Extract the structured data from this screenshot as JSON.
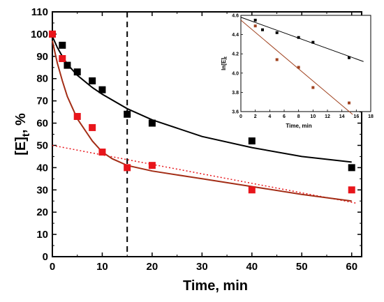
{
  "chart_data": [
    {
      "type": "scatter",
      "title": "",
      "xlabel": "Time, min",
      "ylabel_main": "[E]",
      "ylabel_sub": "t",
      "ylabel_tail": ", %",
      "xlim": [
        0,
        62
      ],
      "ylim": [
        0,
        110
      ],
      "x_ticks": [
        0,
        10,
        20,
        30,
        40,
        50,
        60
      ],
      "y_ticks": [
        0,
        10,
        20,
        30,
        40,
        50,
        60,
        70,
        80,
        90,
        100,
        110
      ],
      "grid": false,
      "legend": "none",
      "annotations": [
        {
          "type": "vertical-dashed-line",
          "x": 15,
          "color": "#000000"
        }
      ],
      "series": [
        {
          "color": "#000000",
          "marker": "square",
          "x": [
            0,
            2,
            3,
            5,
            8,
            10,
            15,
            20,
            40,
            60
          ],
          "y": [
            100,
            95,
            86,
            83,
            79,
            75,
            64,
            60,
            52,
            40
          ],
          "fit_curve": {
            "x": [
              0,
              1,
              2,
              3,
              5,
              8,
              10,
              15,
              20,
              30,
              40,
              50,
              60
            ],
            "y": [
              99,
              94,
              90,
              86.5,
              81.5,
              76,
              73,
              66.5,
              61.5,
              54,
              49,
              45,
              42.5
            ]
          }
        },
        {
          "color": "#e8151b",
          "fit_color": "#a32d16",
          "marker": "square",
          "x": [
            0,
            2,
            5,
            8,
            10,
            15,
            20,
            40,
            60
          ],
          "y": [
            100,
            89,
            63,
            58,
            47,
            40,
            41,
            30,
            30
          ],
          "fit_curve": {
            "x": [
              0,
              1,
              2,
              3,
              5,
              8,
              10,
              12,
              15,
              20,
              30,
              40,
              50,
              60
            ],
            "y": [
              97,
              87,
              79,
              72,
              62,
              52,
              47,
              44,
              41,
              38.5,
              35,
              31.5,
              28,
              25
            ]
          },
          "dotted_line": {
            "x": [
              0,
              61
            ],
            "y": [
              50,
              24
            ]
          }
        }
      ]
    },
    {
      "type": "scatter",
      "title": "",
      "xlabel": "Time, min",
      "ylabel_main": "ln[E]",
      "ylabel_sub": "t",
      "xlim": [
        0,
        18
      ],
      "ylim": [
        3.6,
        4.6
      ],
      "x_ticks": [
        0,
        2,
        4,
        6,
        8,
        10,
        12,
        14,
        16,
        18
      ],
      "y_ticks": [
        "3.6",
        "3.8",
        "4.0",
        "4.2",
        "4.4",
        "4.6"
      ],
      "grid": false,
      "legend": "none",
      "series": [
        {
          "color": "#000000",
          "marker": "square",
          "x": [
            2,
            3,
            5,
            8,
            10,
            15
          ],
          "y": [
            4.55,
            4.45,
            4.42,
            4.37,
            4.32,
            4.16
          ],
          "fit_line": {
            "x": [
              0,
              17
            ],
            "y": [
              4.58,
              4.12
            ]
          }
        },
        {
          "color": "#a0421f",
          "marker": "square",
          "x": [
            2,
            5,
            8,
            10,
            15
          ],
          "y": [
            4.49,
            4.14,
            4.06,
            3.85,
            3.69
          ],
          "fit_line": {
            "x": [
              0,
              15.5
            ],
            "y": [
              4.55,
              3.57
            ]
          }
        }
      ]
    }
  ]
}
